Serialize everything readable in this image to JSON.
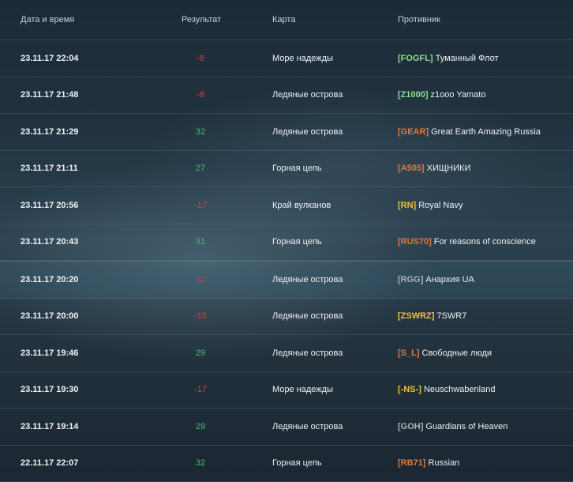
{
  "header": {
    "date": "Дата и время",
    "result": "Результат",
    "map": "Карта",
    "opponent": "Противник"
  },
  "colors": {
    "positive": "#43c26b",
    "negative": "#d4433a"
  },
  "rows": [
    {
      "date": "23.11.17 22:04",
      "result": "-8",
      "map": "Море надежды",
      "tag": "[FOGFL]",
      "tag_color": "#8fe08a",
      "name": "Туманный Флот"
    },
    {
      "date": "23.11.17 21:48",
      "result": "-8",
      "map": "Ледяные острова",
      "tag": "[Z1000]",
      "tag_color": "#8fe08a",
      "name": "z1ooo Yamato"
    },
    {
      "date": "23.11.17 21:29",
      "result": "32",
      "map": "Ледяные острова",
      "tag": "[GEAR]",
      "tag_color": "#e07a3a",
      "name": "Great Earth Amazing Russia"
    },
    {
      "date": "23.11.17 21:11",
      "result": "27",
      "map": "Горная цепь",
      "tag": "[A505]",
      "tag_color": "#e07a3a",
      "name": "ХИЩНИКИ"
    },
    {
      "date": "23.11.17 20:56",
      "result": "-17",
      "map": "Край вулканов",
      "tag": "[RN]",
      "tag_color": "#f0c23a",
      "name": "Royal Navy"
    },
    {
      "date": "23.11.17 20:43",
      "result": "31",
      "map": "Горная цепь",
      "tag": "[RUS70]",
      "tag_color": "#e07a3a",
      "name": "For reasons of conscience"
    },
    {
      "date": "23.11.17 20:20",
      "result": "-11",
      "map": "Ледяные острова",
      "tag": "[RGG]",
      "tag_color": "#a9b4ba",
      "name": "Анархия UA"
    },
    {
      "date": "23.11.17 20:00",
      "result": "-15",
      "map": "Ледяные острова",
      "tag": "[ZSWRZ]",
      "tag_color": "#f0c23a",
      "name": "7SWR7"
    },
    {
      "date": "23.11.17 19:46",
      "result": "29",
      "map": "Ледяные острова",
      "tag": "[S_L]",
      "tag_color": "#e07a3a",
      "name": "Свободные люди"
    },
    {
      "date": "23.11.17 19:30",
      "result": "-17",
      "map": "Море надежды",
      "tag": "[-NS-]",
      "tag_color": "#f0c23a",
      "name": "Neuschwabenland"
    },
    {
      "date": "23.11.17 19:14",
      "result": "29",
      "map": "Ледяные острова",
      "tag": "[GOH]",
      "tag_color": "#a9b4ba",
      "name": "Guardians of Heaven"
    },
    {
      "date": "22.11.17 22:07",
      "result": "32",
      "map": "Горная цепь",
      "tag": "[RB71]",
      "tag_color": "#e07a3a",
      "name": "Russian"
    }
  ]
}
